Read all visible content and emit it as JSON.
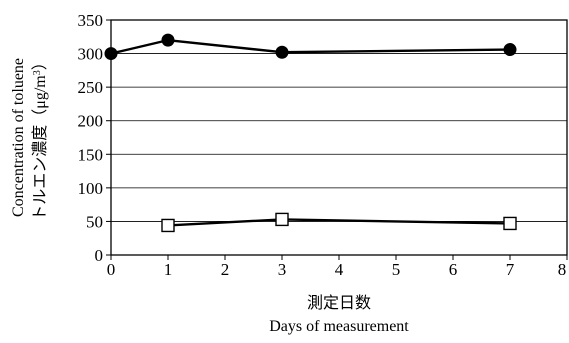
{
  "chart_data": {
    "type": "line",
    "xlabel_lines": [
      "測定日数",
      "Days of measurement"
    ],
    "ylabel_lines": [
      "Concentration of toluene",
      "トルエン濃度（μg/m",
      "3",
      "）"
    ],
    "xlim": [
      0,
      8
    ],
    "ylim": [
      0,
      350
    ],
    "x_ticks": [
      0,
      1,
      2,
      3,
      4,
      5,
      6,
      7,
      8
    ],
    "y_ticks": [
      0,
      50,
      100,
      150,
      200,
      250,
      300,
      350
    ],
    "grid": "horizontal",
    "series": [
      {
        "marker": "filled-circle",
        "color": "#000000",
        "x": [
          0,
          1,
          3,
          7
        ],
        "y": [
          300,
          320,
          302,
          306
        ]
      },
      {
        "marker": "open-square",
        "color": "#000000",
        "x": [
          1,
          3,
          7
        ],
        "y": [
          44,
          53,
          47
        ]
      }
    ]
  }
}
